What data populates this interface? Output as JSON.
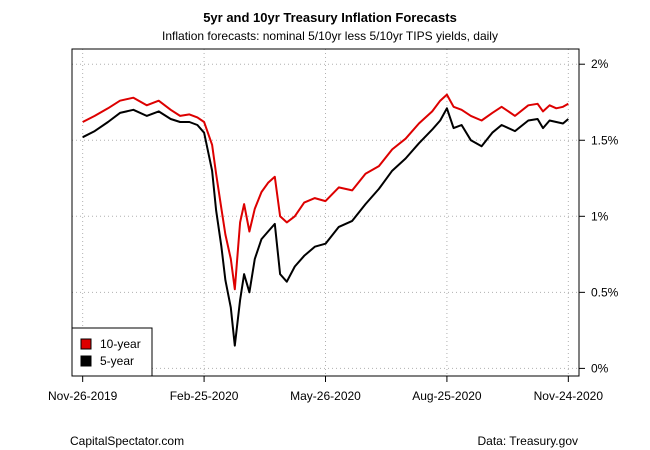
{
  "chart_data": {
    "type": "line",
    "title": "5yr and 10yr Treasury Inflation Forecasts",
    "subtitle": "Inflation forecasts: nominal 5/10yr less 5/10yr TIPS yields, daily",
    "xlabel": "",
    "ylabel": "",
    "x_tick_labels": [
      "Nov-26-2019",
      "Feb-25-2020",
      "May-26-2020",
      "Aug-25-2020",
      "Nov-24-2020"
    ],
    "y_tick_labels": [
      "0%",
      "0.5%",
      "1%",
      "1.5%",
      "2%"
    ],
    "y_ticks": [
      0,
      0.5,
      1.0,
      1.5,
      2.0
    ],
    "ylim": [
      -0.05,
      2.1
    ],
    "xlim": [
      "2019-11-18",
      "2020-12-02"
    ],
    "grid": true,
    "legend_position": "bottom-left",
    "series": [
      {
        "name": "10-year",
        "color": "#dd0000",
        "x": [
          "2019-11-26",
          "2019-12-05",
          "2019-12-15",
          "2019-12-24",
          "2020-01-03",
          "2020-01-13",
          "2020-01-22",
          "2020-01-31",
          "2020-02-07",
          "2020-02-14",
          "2020-02-20",
          "2020-02-25",
          "2020-03-02",
          "2020-03-05",
          "2020-03-09",
          "2020-03-12",
          "2020-03-16",
          "2020-03-19",
          "2020-03-23",
          "2020-03-26",
          "2020-03-30",
          "2020-04-03",
          "2020-04-08",
          "2020-04-13",
          "2020-04-18",
          "2020-04-22",
          "2020-04-27",
          "2020-05-03",
          "2020-05-10",
          "2020-05-18",
          "2020-05-26",
          "2020-06-05",
          "2020-06-15",
          "2020-06-25",
          "2020-07-05",
          "2020-07-15",
          "2020-07-25",
          "2020-08-04",
          "2020-08-14",
          "2020-08-20",
          "2020-08-25",
          "2020-08-30",
          "2020-09-05",
          "2020-09-12",
          "2020-09-20",
          "2020-09-28",
          "2020-10-05",
          "2020-10-15",
          "2020-10-25",
          "2020-11-01",
          "2020-11-05",
          "2020-11-10",
          "2020-11-15",
          "2020-11-20",
          "2020-11-24"
        ],
        "values": [
          1.62,
          1.66,
          1.71,
          1.76,
          1.78,
          1.73,
          1.76,
          1.7,
          1.66,
          1.67,
          1.65,
          1.62,
          1.47,
          1.28,
          1.05,
          0.88,
          0.72,
          0.52,
          0.96,
          1.08,
          0.9,
          1.05,
          1.16,
          1.22,
          1.26,
          1.0,
          0.96,
          1.0,
          1.09,
          1.12,
          1.1,
          1.19,
          1.17,
          1.28,
          1.33,
          1.44,
          1.51,
          1.61,
          1.69,
          1.76,
          1.8,
          1.72,
          1.7,
          1.66,
          1.63,
          1.68,
          1.72,
          1.66,
          1.73,
          1.74,
          1.69,
          1.73,
          1.71,
          1.72,
          1.74
        ]
      },
      {
        "name": "5-year",
        "color": "#000000",
        "x": [
          "2019-11-26",
          "2019-12-05",
          "2019-12-15",
          "2019-12-24",
          "2020-01-03",
          "2020-01-13",
          "2020-01-22",
          "2020-01-31",
          "2020-02-07",
          "2020-02-14",
          "2020-02-20",
          "2020-02-25",
          "2020-03-02",
          "2020-03-05",
          "2020-03-09",
          "2020-03-12",
          "2020-03-16",
          "2020-03-19",
          "2020-03-23",
          "2020-03-26",
          "2020-03-30",
          "2020-04-03",
          "2020-04-08",
          "2020-04-13",
          "2020-04-18",
          "2020-04-22",
          "2020-04-27",
          "2020-05-03",
          "2020-05-10",
          "2020-05-18",
          "2020-05-26",
          "2020-06-05",
          "2020-06-15",
          "2020-06-25",
          "2020-07-05",
          "2020-07-15",
          "2020-07-25",
          "2020-08-04",
          "2020-08-14",
          "2020-08-20",
          "2020-08-25",
          "2020-08-30",
          "2020-09-05",
          "2020-09-12",
          "2020-09-20",
          "2020-09-28",
          "2020-10-05",
          "2020-10-15",
          "2020-10-25",
          "2020-11-01",
          "2020-11-05",
          "2020-11-10",
          "2020-11-15",
          "2020-11-20",
          "2020-11-24"
        ],
        "values": [
          1.52,
          1.56,
          1.62,
          1.68,
          1.7,
          1.66,
          1.69,
          1.64,
          1.62,
          1.62,
          1.6,
          1.55,
          1.3,
          1.04,
          0.8,
          0.58,
          0.4,
          0.15,
          0.45,
          0.62,
          0.5,
          0.72,
          0.85,
          0.9,
          0.95,
          0.62,
          0.57,
          0.67,
          0.74,
          0.8,
          0.82,
          0.93,
          0.97,
          1.08,
          1.18,
          1.3,
          1.38,
          1.48,
          1.57,
          1.63,
          1.71,
          1.58,
          1.6,
          1.5,
          1.46,
          1.55,
          1.6,
          1.56,
          1.63,
          1.64,
          1.58,
          1.63,
          1.62,
          1.61,
          1.64
        ]
      }
    ]
  },
  "footer": {
    "left": "CapitalSpectator.com",
    "right": "Data: Treasury.gov"
  }
}
